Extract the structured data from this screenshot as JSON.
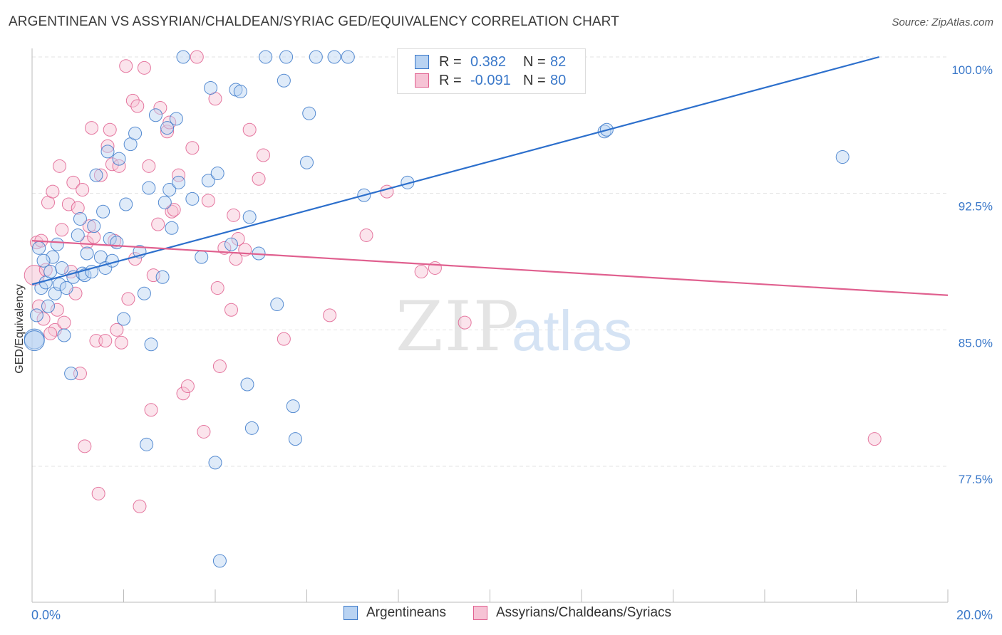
{
  "title": "ARGENTINEAN VS ASSYRIAN/CHALDEAN/SYRIAC GED/EQUIVALENCY CORRELATION CHART",
  "source": "Source: ZipAtlas.com",
  "watermark": {
    "zip": "ZIP",
    "atlas": "atlas"
  },
  "colors": {
    "blue": "#3a78c9",
    "blue_fill": "#b9d3f2",
    "blue_line": "#2c6fcc",
    "pink": "#e0608f",
    "pink_fill": "#f6c3d5",
    "pink_line": "#e0608f",
    "grid": "#e3e3e3",
    "axis_label": "#3a78c9"
  },
  "legend_top": [
    {
      "swatch": "blue",
      "r_label": "R =",
      "r_value": "0.382",
      "n_label": "N =",
      "n_value": "82"
    },
    {
      "swatch": "pink",
      "r_label": "R =",
      "r_value": "-0.091",
      "n_label": "N =",
      "n_value": "80"
    }
  ],
  "legend_bottom": [
    {
      "swatch": "blue",
      "label": "Argentineans"
    },
    {
      "swatch": "pink",
      "label": "Assyrians/Chaldeans/Syriacs"
    }
  ],
  "chart_data": {
    "type": "scatter",
    "title": "ARGENTINEAN VS ASSYRIAN/CHALDEAN/SYRIAC GED/EQUIVALENCY CORRELATION CHART",
    "xlabel": "",
    "ylabel": "GED/Equivalency",
    "xlim": [
      0,
      20
    ],
    "ylim": [
      70.3,
      100.5
    ],
    "x_tick_labels": [
      "0.0%",
      "20.0%"
    ],
    "y_tick_values": [
      77.5,
      85.0,
      92.5,
      100.0
    ],
    "y_tick_labels": [
      "77.5%",
      "85.0%",
      "92.5%",
      "100.0%"
    ],
    "grid": true,
    "legend_position": "top-center",
    "series": [
      {
        "name": "Argentineans",
        "color": "blue",
        "R": 0.382,
        "N": 82,
        "trend": {
          "x": [
            0.0,
            18.5
          ],
          "y": [
            87.5,
            100.0
          ]
        },
        "points": [
          [
            0.05,
            84.5
          ],
          [
            0.05,
            84.4
          ],
          [
            0.1,
            85.8
          ],
          [
            0.2,
            87.3
          ],
          [
            0.3,
            87.6
          ],
          [
            0.35,
            86.3
          ],
          [
            0.4,
            88.2
          ],
          [
            0.45,
            89.0
          ],
          [
            0.5,
            87.0
          ],
          [
            0.55,
            89.7
          ],
          [
            0.6,
            87.5
          ],
          [
            0.65,
            88.4
          ],
          [
            0.7,
            84.7
          ],
          [
            0.75,
            87.3
          ],
          [
            0.85,
            82.6
          ],
          [
            0.9,
            87.9
          ],
          [
            1.0,
            90.2
          ],
          [
            1.05,
            91.1
          ],
          [
            1.1,
            88.1
          ],
          [
            1.15,
            88.0
          ],
          [
            1.2,
            89.2
          ],
          [
            1.3,
            88.2
          ],
          [
            1.35,
            90.7
          ],
          [
            1.4,
            93.5
          ],
          [
            1.5,
            89.0
          ],
          [
            1.55,
            91.5
          ],
          [
            1.6,
            88.4
          ],
          [
            1.65,
            94.8
          ],
          [
            1.7,
            90.0
          ],
          [
            1.75,
            88.8
          ],
          [
            1.85,
            89.8
          ],
          [
            1.9,
            94.4
          ],
          [
            2.0,
            85.6
          ],
          [
            2.05,
            91.9
          ],
          [
            2.15,
            95.2
          ],
          [
            2.25,
            95.8
          ],
          [
            2.35,
            89.3
          ],
          [
            2.45,
            87.0
          ],
          [
            2.5,
            78.7
          ],
          [
            2.55,
            92.8
          ],
          [
            2.6,
            84.2
          ],
          [
            2.7,
            96.8
          ],
          [
            2.85,
            87.9
          ],
          [
            2.9,
            92.0
          ],
          [
            2.95,
            96.1
          ],
          [
            3.0,
            92.7
          ],
          [
            3.05,
            90.6
          ],
          [
            3.15,
            96.6
          ],
          [
            3.2,
            93.1
          ],
          [
            3.3,
            100.0
          ],
          [
            3.5,
            92.2
          ],
          [
            3.7,
            89.0
          ],
          [
            3.85,
            93.2
          ],
          [
            3.9,
            98.3
          ],
          [
            4.0,
            77.7
          ],
          [
            4.05,
            93.6
          ],
          [
            4.1,
            72.3
          ],
          [
            4.35,
            89.7
          ],
          [
            4.45,
            98.2
          ],
          [
            4.55,
            98.1
          ],
          [
            4.7,
            82.0
          ],
          [
            4.75,
            91.2
          ],
          [
            4.8,
            79.6
          ],
          [
            4.95,
            89.2
          ],
          [
            5.1,
            100.0
          ],
          [
            5.35,
            86.4
          ],
          [
            5.5,
            98.7
          ],
          [
            5.55,
            100.0
          ],
          [
            5.7,
            80.8
          ],
          [
            5.75,
            79.0
          ],
          [
            6.0,
            94.2
          ],
          [
            6.05,
            96.9
          ],
          [
            6.2,
            100.0
          ],
          [
            6.6,
            100.0
          ],
          [
            6.9,
            100.0
          ],
          [
            7.25,
            92.4
          ],
          [
            8.2,
            93.1
          ],
          [
            12.5,
            95.9
          ],
          [
            12.55,
            96.0
          ],
          [
            17.7,
            94.5
          ],
          [
            0.15,
            89.5
          ],
          [
            0.25,
            88.8
          ]
        ]
      },
      {
        "name": "Assyrians/Chaldeans/Syriacs",
        "color": "pink",
        "R": -0.091,
        "N": 80,
        "trend": {
          "x": [
            0.0,
            20.0
          ],
          "y": [
            89.9,
            86.9
          ]
        },
        "points": [
          [
            0.05,
            88.0
          ],
          [
            0.1,
            89.8
          ],
          [
            0.15,
            86.3
          ],
          [
            0.2,
            89.9
          ],
          [
            0.25,
            85.6
          ],
          [
            0.3,
            88.3
          ],
          [
            0.35,
            92.0
          ],
          [
            0.45,
            92.6
          ],
          [
            0.5,
            85.0
          ],
          [
            0.55,
            86.1
          ],
          [
            0.6,
            94.0
          ],
          [
            0.65,
            90.5
          ],
          [
            0.7,
            85.4
          ],
          [
            0.8,
            91.9
          ],
          [
            0.85,
            88.2
          ],
          [
            0.9,
            93.1
          ],
          [
            0.95,
            87.0
          ],
          [
            1.0,
            91.7
          ],
          [
            1.05,
            82.6
          ],
          [
            1.1,
            92.7
          ],
          [
            1.15,
            78.6
          ],
          [
            1.2,
            89.8
          ],
          [
            1.3,
            96.1
          ],
          [
            1.35,
            90.1
          ],
          [
            1.4,
            84.4
          ],
          [
            1.45,
            76.0
          ],
          [
            1.5,
            93.5
          ],
          [
            1.6,
            84.4
          ],
          [
            1.65,
            95.1
          ],
          [
            1.7,
            96.0
          ],
          [
            1.75,
            94.1
          ],
          [
            1.8,
            89.9
          ],
          [
            1.85,
            85.0
          ],
          [
            1.9,
            94.0
          ],
          [
            1.95,
            84.3
          ],
          [
            2.05,
            99.5
          ],
          [
            2.1,
            86.7
          ],
          [
            2.2,
            97.6
          ],
          [
            2.25,
            88.9
          ],
          [
            2.3,
            97.3
          ],
          [
            2.35,
            75.3
          ],
          [
            2.45,
            99.4
          ],
          [
            2.55,
            94.0
          ],
          [
            2.6,
            80.6
          ],
          [
            2.75,
            90.8
          ],
          [
            2.8,
            97.2
          ],
          [
            2.95,
            95.9
          ],
          [
            3.0,
            96.4
          ],
          [
            3.05,
            91.5
          ],
          [
            3.1,
            91.6
          ],
          [
            3.2,
            93.5
          ],
          [
            3.3,
            81.5
          ],
          [
            3.4,
            81.9
          ],
          [
            3.5,
            95.0
          ],
          [
            3.6,
            100.0
          ],
          [
            3.75,
            79.4
          ],
          [
            3.85,
            92.1
          ],
          [
            4.0,
            97.7
          ],
          [
            4.05,
            87.3
          ],
          [
            4.1,
            83.0
          ],
          [
            4.2,
            89.5
          ],
          [
            4.35,
            86.1
          ],
          [
            4.4,
            91.3
          ],
          [
            4.45,
            88.9
          ],
          [
            4.65,
            89.4
          ],
          [
            4.75,
            96.0
          ],
          [
            4.95,
            93.3
          ],
          [
            5.05,
            94.6
          ],
          [
            5.5,
            84.5
          ],
          [
            6.5,
            85.8
          ],
          [
            7.3,
            90.2
          ],
          [
            7.75,
            92.6
          ],
          [
            8.5,
            88.2
          ],
          [
            8.8,
            88.4
          ],
          [
            9.45,
            85.4
          ],
          [
            18.4,
            79.0
          ],
          [
            0.4,
            84.8
          ],
          [
            1.25,
            90.7
          ],
          [
            2.65,
            88.0
          ],
          [
            4.5,
            90.0
          ]
        ]
      }
    ]
  }
}
